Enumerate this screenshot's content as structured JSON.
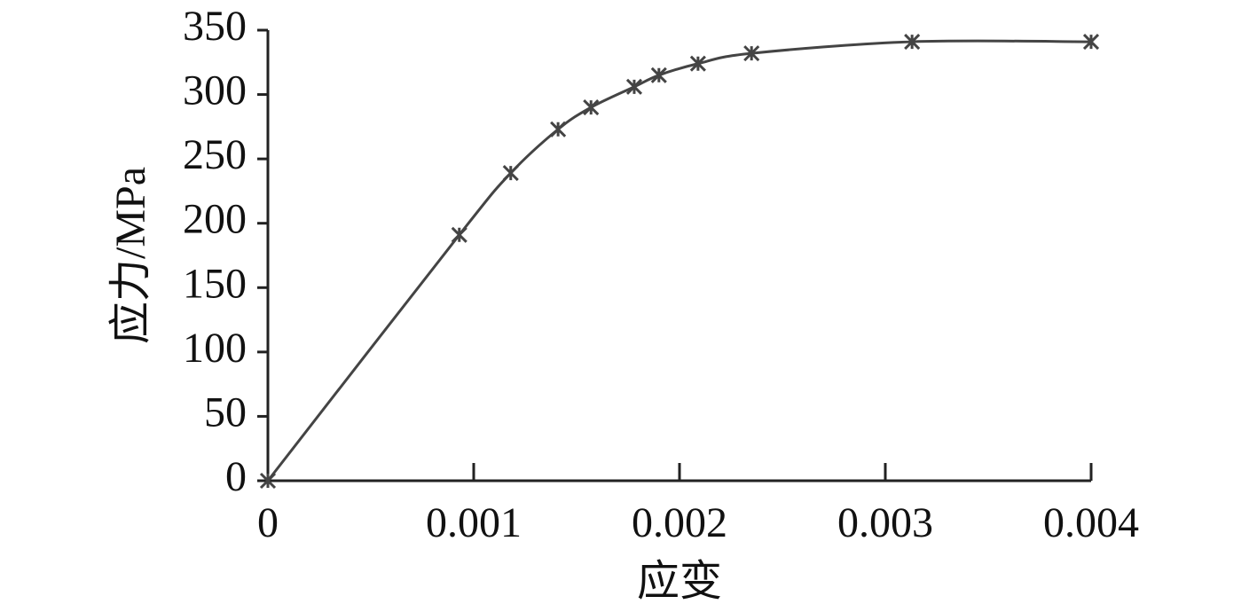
{
  "chart_data": {
    "type": "line",
    "xlabel": "应变",
    "ylabel": "应力/MPa",
    "x": [
      0,
      0.00093,
      0.00118,
      0.00141,
      0.00157,
      0.00178,
      0.0019,
      0.00209,
      0.00235,
      0.00313,
      0.004
    ],
    "series": [
      {
        "color": "#444444",
        "values": [
          0,
          191,
          239,
          273,
          290,
          306,
          315,
          324,
          332,
          341,
          341
        ]
      }
    ],
    "xlim": [
      0,
      0.004
    ],
    "xticks": [
      0,
      0.001,
      0.002,
      0.003,
      0.004
    ],
    "ylim": [
      0,
      350
    ],
    "yticks": [
      0,
      50,
      100,
      150,
      200,
      250,
      300,
      350
    ]
  }
}
